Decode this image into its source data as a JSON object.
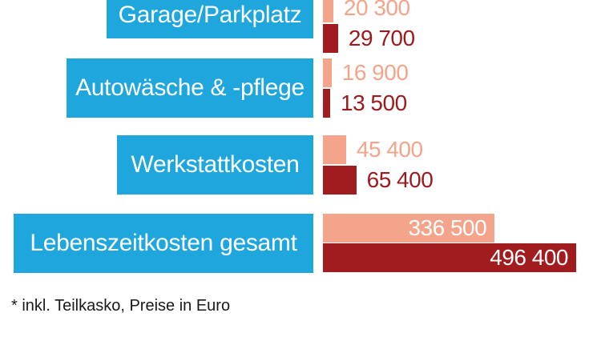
{
  "chart_data": {
    "type": "bar",
    "orientation": "horizontal",
    "categories": [
      "Garage/Parkplatz",
      "Autowäsche & -pflege",
      "Werkstattkosten",
      "Lebenszeitkosten gesamt"
    ],
    "series": [
      {
        "color": "#f4a48a",
        "values": [
          20300,
          16900,
          45400,
          336500
        ]
      },
      {
        "color": "#a01c1f",
        "values": [
          29700,
          13500,
          65400,
          496400
        ]
      }
    ],
    "value_labels": [
      [
        "20 300",
        "16 900",
        "45 400",
        "336 500"
      ],
      [
        "29 700",
        "13 500",
        "65 400",
        "496 400"
      ]
    ],
    "colors": {
      "label_background": "#1ea6dd",
      "label_text": "#ffffff",
      "light_value_text": "#f4a48a",
      "dark_value_text": "#9a1b1e",
      "inside_value_text": "#ffffff"
    }
  },
  "footnote": "* inkl. Teilkasko, Preise in Euro"
}
